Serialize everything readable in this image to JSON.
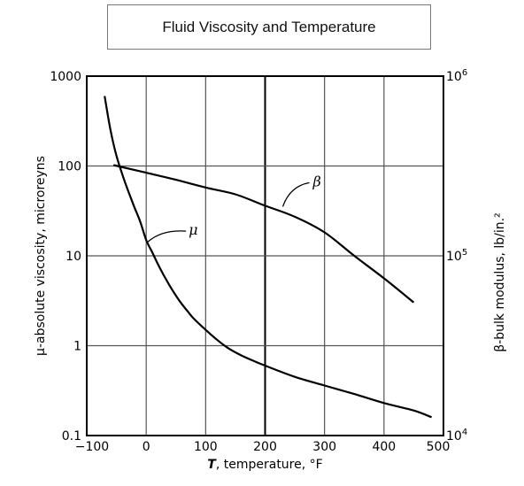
{
  "chart_data": {
    "type": "line",
    "title": "Fluid Viscosity and Temperature",
    "xlabel": "T, temperature, °F",
    "xlabel_symbol": "T",
    "xlabel_rest": ", temperature, °F",
    "ylabel": "μ-absolute viscosity, microreyns",
    "y2label": "β-bulk modulus, lb/in.²",
    "xlim": [
      -100,
      500
    ],
    "ylim": [
      0.1,
      1000
    ],
    "y2lim": [
      10000,
      1000000
    ],
    "yscale": "log",
    "y2scale": "log",
    "grid": true,
    "x_ticks": [
      "-100",
      "0",
      "100",
      "200",
      "300",
      "400",
      "500"
    ],
    "y_ticks": [
      "0.1",
      "1",
      "10",
      "100",
      "1000"
    ],
    "y2_ticks": [
      {
        "base": "10",
        "exp": "4"
      },
      {
        "base": "10",
        "exp": "5"
      },
      {
        "base": "10",
        "exp": "6"
      }
    ],
    "series": [
      {
        "name": "μ",
        "axis": "left",
        "x": [
          -70,
          -60,
          -50,
          -40,
          -30,
          -20,
          -10,
          0,
          10,
          20,
          30,
          40,
          50,
          60,
          70,
          80,
          100,
          120,
          140,
          160,
          180,
          200,
          250,
          300,
          350,
          400,
          450,
          480
        ],
        "y": [
          600,
          250,
          130,
          80,
          52,
          35,
          24,
          15,
          11,
          8,
          6,
          4.6,
          3.6,
          2.9,
          2.4,
          2.0,
          1.5,
          1.15,
          0.92,
          0.78,
          0.68,
          0.6,
          0.45,
          0.36,
          0.29,
          0.23,
          0.19,
          0.16
        ]
      },
      {
        "name": "β",
        "axis": "right",
        "x": [
          -55,
          0,
          50,
          100,
          150,
          200,
          250,
          300,
          350,
          400,
          450
        ],
        "y": [
          320000,
          290000,
          265000,
          240000,
          220000,
          190000,
          165000,
          135000,
          100000,
          75000,
          55000
        ]
      }
    ],
    "annotations": [
      {
        "text": "μ",
        "series": "μ"
      },
      {
        "text": "β",
        "series": "β"
      }
    ]
  }
}
